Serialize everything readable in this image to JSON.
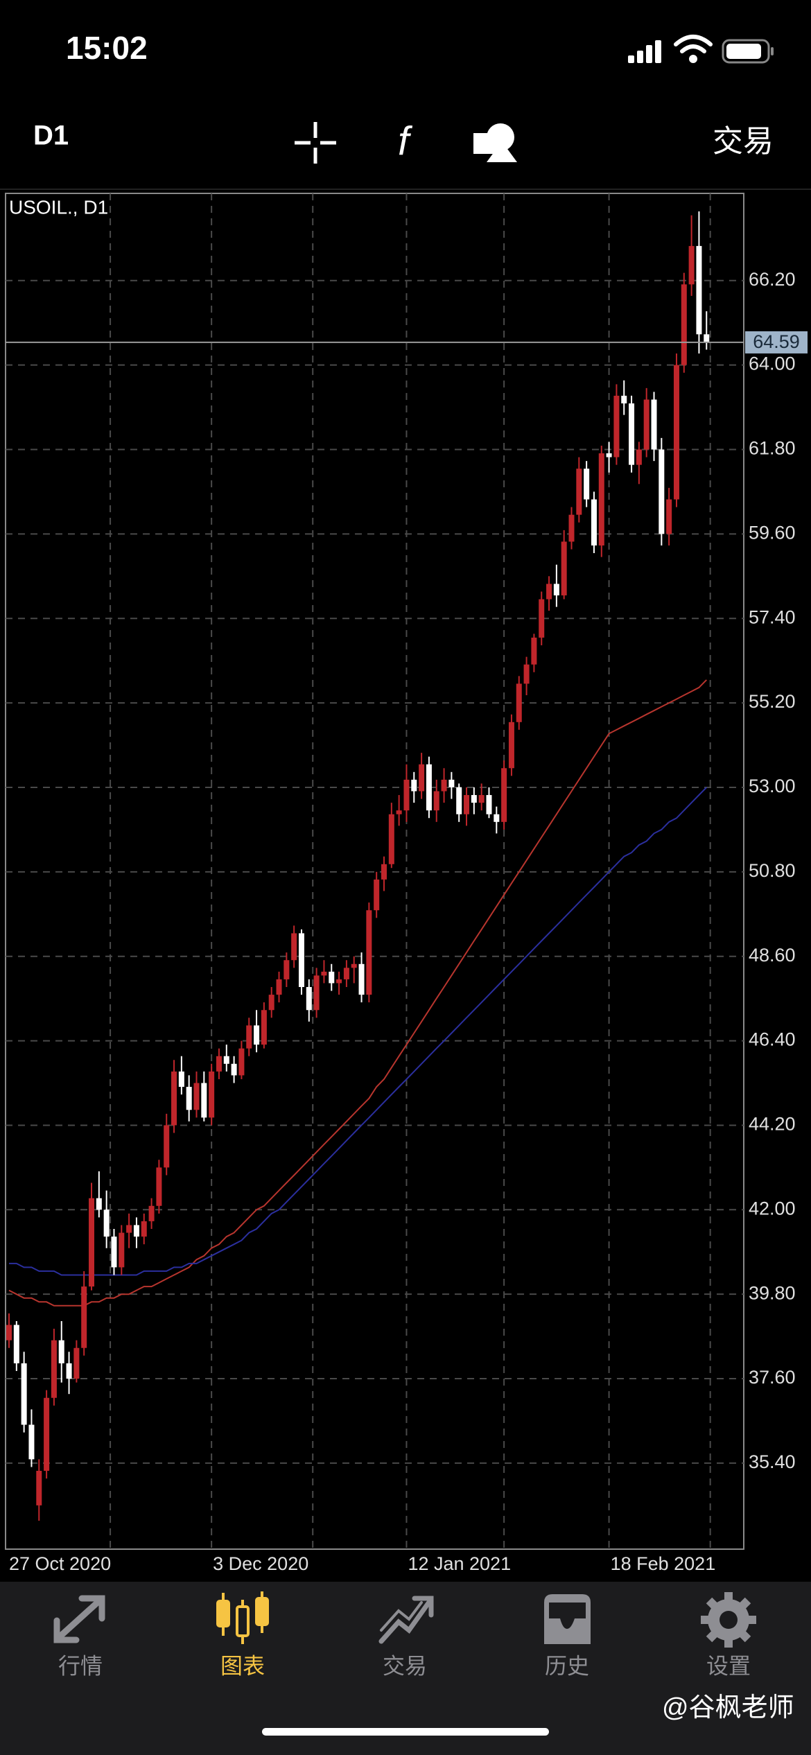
{
  "status_bar": {
    "time": "15:02"
  },
  "toolbar": {
    "timeframe": "D1",
    "trade": "交易"
  },
  "chart_data": {
    "type": "candlestick",
    "title": "USOIL., D1",
    "categories": [
      "27 Oct 2020",
      null,
      null,
      null,
      null,
      null,
      null,
      null,
      null,
      null,
      null,
      null,
      null,
      null,
      null,
      null,
      null,
      null,
      null,
      null,
      null,
      null,
      null,
      null,
      null,
      null,
      null,
      "3 Dec 2020",
      null,
      null,
      null,
      null,
      null,
      null,
      null,
      null,
      null,
      null,
      null,
      null,
      null,
      null,
      null,
      null,
      null,
      null,
      null,
      null,
      null,
      null,
      null,
      null,
      null,
      "12 Jan 2021",
      null,
      null,
      null,
      null,
      null,
      null,
      null,
      null,
      null,
      null,
      null,
      null,
      null,
      null,
      null,
      null,
      null,
      null,
      null,
      null,
      null,
      null,
      null,
      null,
      null,
      null,
      "18 Feb 2021",
      null,
      null,
      null,
      null,
      null,
      null,
      null,
      null,
      null,
      null,
      null,
      null,
      null
    ],
    "ohlc": [
      [
        38.6,
        39.3,
        38.4,
        39.0
      ],
      [
        39.0,
        39.1,
        37.8,
        38.0
      ],
      [
        38.0,
        38.3,
        36.2,
        36.4
      ],
      [
        36.4,
        36.8,
        35.3,
        35.5
      ],
      [
        34.3,
        35.5,
        33.9,
        35.2
      ],
      [
        35.2,
        37.3,
        35.0,
        37.1
      ],
      [
        37.1,
        38.9,
        36.9,
        38.6
      ],
      [
        38.6,
        39.1,
        37.5,
        38.0
      ],
      [
        38.0,
        38.3,
        37.2,
        37.6
      ],
      [
        37.6,
        38.6,
        37.5,
        38.4
      ],
      [
        38.4,
        40.4,
        38.2,
        40.0
      ],
      [
        40.0,
        42.7,
        39.9,
        42.3
      ],
      [
        42.3,
        43.0,
        41.8,
        42.0
      ],
      [
        42.0,
        42.5,
        41.0,
        41.3
      ],
      [
        41.3,
        41.5,
        40.3,
        40.5
      ],
      [
        40.5,
        41.6,
        40.3,
        41.4
      ],
      [
        41.4,
        41.9,
        41.0,
        41.6
      ],
      [
        41.6,
        41.8,
        41.0,
        41.3
      ],
      [
        41.3,
        41.9,
        41.1,
        41.7
      ],
      [
        41.7,
        42.3,
        41.5,
        42.1
      ],
      [
        42.1,
        43.3,
        41.9,
        43.1
      ],
      [
        43.1,
        44.5,
        42.9,
        44.2
      ],
      [
        44.2,
        45.9,
        44.0,
        45.6
      ],
      [
        45.6,
        46.0,
        45.0,
        45.2
      ],
      [
        45.2,
        45.5,
        44.3,
        44.6
      ],
      [
        44.6,
        45.6,
        44.4,
        45.3
      ],
      [
        45.3,
        45.6,
        44.3,
        44.4
      ],
      [
        44.4,
        45.8,
        44.2,
        45.6
      ],
      [
        45.6,
        46.2,
        45.4,
        46.0
      ],
      [
        46.0,
        46.3,
        45.6,
        45.8
      ],
      [
        45.8,
        46.0,
        45.3,
        45.5
      ],
      [
        45.5,
        46.4,
        45.4,
        46.2
      ],
      [
        46.2,
        47.0,
        46.0,
        46.8
      ],
      [
        46.8,
        47.2,
        46.1,
        46.3
      ],
      [
        46.3,
        47.4,
        46.2,
        47.2
      ],
      [
        47.2,
        47.8,
        47.0,
        47.6
      ],
      [
        47.6,
        48.2,
        47.4,
        48.0
      ],
      [
        48.0,
        48.7,
        47.8,
        48.5
      ],
      [
        48.5,
        49.4,
        48.3,
        49.2
      ],
      [
        49.2,
        49.3,
        47.6,
        47.8
      ],
      [
        47.8,
        48.0,
        46.9,
        47.2
      ],
      [
        47.2,
        48.3,
        47.0,
        48.1
      ],
      [
        48.1,
        48.5,
        47.9,
        48.2
      ],
      [
        48.2,
        48.4,
        47.7,
        47.9
      ],
      [
        47.9,
        48.2,
        47.6,
        48.0
      ],
      [
        48.0,
        48.5,
        47.8,
        48.3
      ],
      [
        48.3,
        48.6,
        47.9,
        48.4
      ],
      [
        48.4,
        48.7,
        47.4,
        47.6
      ],
      [
        47.6,
        50.0,
        47.4,
        49.8
      ],
      [
        49.8,
        50.8,
        49.6,
        50.6
      ],
      [
        50.6,
        51.2,
        50.3,
        51.0
      ],
      [
        51.0,
        52.6,
        50.9,
        52.3
      ],
      [
        52.3,
        52.8,
        52.0,
        52.4
      ],
      [
        52.4,
        53.6,
        52.1,
        53.2
      ],
      [
        53.2,
        53.4,
        52.6,
        52.9
      ],
      [
        52.9,
        53.9,
        52.7,
        53.6
      ],
      [
        53.6,
        53.8,
        52.2,
        52.4
      ],
      [
        52.4,
        53.2,
        52.1,
        52.9
      ],
      [
        52.9,
        53.5,
        52.6,
        53.2
      ],
      [
        53.2,
        53.4,
        52.7,
        53.0
      ],
      [
        53.0,
        53.1,
        52.1,
        52.3
      ],
      [
        52.3,
        53.0,
        52.0,
        52.8
      ],
      [
        52.8,
        53.0,
        52.3,
        52.6
      ],
      [
        52.6,
        53.1,
        52.4,
        52.8
      ],
      [
        52.8,
        53.0,
        52.2,
        52.3
      ],
      [
        52.3,
        52.5,
        51.8,
        52.1
      ],
      [
        52.1,
        53.7,
        51.9,
        53.5
      ],
      [
        53.5,
        54.9,
        53.3,
        54.7
      ],
      [
        54.7,
        55.9,
        54.5,
        55.7
      ],
      [
        55.7,
        56.4,
        55.4,
        56.2
      ],
      [
        56.2,
        57.0,
        56.0,
        56.9
      ],
      [
        56.9,
        58.1,
        56.7,
        57.9
      ],
      [
        57.9,
        58.5,
        57.6,
        58.3
      ],
      [
        58.3,
        58.8,
        57.7,
        58.0
      ],
      [
        58.0,
        59.7,
        57.9,
        59.4
      ],
      [
        59.4,
        60.3,
        59.2,
        60.1
      ],
      [
        60.1,
        61.6,
        59.9,
        61.3
      ],
      [
        61.3,
        61.5,
        60.3,
        60.5
      ],
      [
        60.5,
        60.7,
        59.1,
        59.3
      ],
      [
        59.3,
        61.9,
        59.0,
        61.7
      ],
      [
        61.7,
        62.0,
        61.2,
        61.6
      ],
      [
        61.6,
        63.5,
        61.4,
        63.2
      ],
      [
        63.2,
        63.6,
        62.7,
        63.0
      ],
      [
        63.0,
        63.2,
        61.2,
        61.4
      ],
      [
        61.4,
        62.0,
        60.9,
        61.8
      ],
      [
        61.8,
        63.4,
        61.6,
        63.1
      ],
      [
        63.1,
        63.3,
        61.5,
        61.8
      ],
      [
        61.8,
        62.1,
        59.3,
        59.6
      ],
      [
        59.6,
        60.8,
        59.3,
        60.5
      ],
      [
        60.5,
        64.3,
        60.3,
        64.0
      ],
      [
        64.0,
        66.4,
        63.8,
        66.1
      ],
      [
        66.1,
        67.9,
        65.8,
        67.1
      ],
      [
        67.1,
        68.0,
        64.3,
        64.8
      ],
      [
        64.8,
        65.4,
        64.4,
        64.59
      ]
    ],
    "up_color": "#c0262b",
    "down_color": "#ffffff",
    "lines": [
      {
        "color": "#b8352e",
        "values": [
          39.9,
          39.8,
          39.7,
          39.7,
          39.6,
          39.6,
          39.5,
          39.5,
          39.5,
          39.5,
          39.5,
          39.6,
          39.6,
          39.7,
          39.7,
          39.8,
          39.8,
          39.9,
          40.0,
          40.0,
          40.1,
          40.2,
          40.3,
          40.4,
          40.5,
          40.7,
          40.8,
          41.0,
          41.1,
          41.3,
          41.4,
          41.6,
          41.8,
          42.0,
          42.1,
          42.3,
          42.5,
          42.7,
          42.9,
          43.1,
          43.3,
          43.5,
          43.7,
          43.9,
          44.1,
          44.3,
          44.5,
          44.7,
          44.9,
          45.2,
          45.4,
          45.7,
          46.0,
          46.3,
          46.6,
          46.9,
          47.2,
          47.5,
          47.8,
          48.1,
          48.4,
          48.7,
          49.0,
          49.3,
          49.6,
          49.9,
          50.2,
          50.5,
          50.8,
          51.1,
          51.4,
          51.7,
          52.0,
          52.3,
          52.6,
          52.9,
          53.2,
          53.5,
          53.8,
          54.1,
          54.4,
          54.5,
          54.6,
          54.7,
          54.8,
          54.9,
          55.0,
          55.1,
          55.2,
          55.3,
          55.4,
          55.5,
          55.6,
          55.8
        ]
      },
      {
        "color": "#2b2f9e",
        "values": [
          40.6,
          40.6,
          40.5,
          40.5,
          40.4,
          40.4,
          40.4,
          40.3,
          40.3,
          40.3,
          40.3,
          40.3,
          40.3,
          40.3,
          40.3,
          40.3,
          40.3,
          40.3,
          40.4,
          40.4,
          40.4,
          40.4,
          40.5,
          40.5,
          40.6,
          40.6,
          40.7,
          40.8,
          40.9,
          41.0,
          41.1,
          41.2,
          41.4,
          41.5,
          41.7,
          41.9,
          42.0,
          42.2,
          42.4,
          42.6,
          42.8,
          43.0,
          43.2,
          43.4,
          43.6,
          43.8,
          44.0,
          44.2,
          44.4,
          44.6,
          44.8,
          45.0,
          45.2,
          45.4,
          45.6,
          45.8,
          46.0,
          46.2,
          46.4,
          46.6,
          46.8,
          47.0,
          47.2,
          47.4,
          47.6,
          47.8,
          48.0,
          48.2,
          48.4,
          48.6,
          48.8,
          49.0,
          49.2,
          49.4,
          49.6,
          49.8,
          50.0,
          50.2,
          50.4,
          50.6,
          50.8,
          51.0,
          51.2,
          51.3,
          51.5,
          51.6,
          51.8,
          51.9,
          52.1,
          52.2,
          52.4,
          52.6,
          52.8,
          53.0
        ]
      }
    ],
    "last_price": 64.59,
    "ylim": [
      33.16,
      68.47
    ],
    "yticks": [
      {
        "value": 66.2,
        "label": "66.20"
      },
      {
        "value": 64,
        "label": "64.00"
      },
      {
        "value": 61.8,
        "label": "61.80"
      },
      {
        "value": 59.6,
        "label": "59.60"
      },
      {
        "value": 57.4,
        "label": "57.40"
      },
      {
        "value": 55.2,
        "label": "55.20"
      },
      {
        "value": 53,
        "label": "53.00"
      },
      {
        "value": 50.8,
        "label": "50.80"
      },
      {
        "value": 48.6,
        "label": "48.60"
      },
      {
        "value": 46.4,
        "label": "46.40"
      },
      {
        "value": 44.2,
        "label": "44.20"
      },
      {
        "value": 42,
        "label": "42.00"
      },
      {
        "value": 39.8,
        "label": "39.80"
      },
      {
        "value": 37.6,
        "label": "37.60"
      },
      {
        "value": 35.4,
        "label": "35.40"
      }
    ],
    "grid": true
  },
  "tabs": [
    {
      "label": "行情",
      "active": false
    },
    {
      "label": "图表",
      "active": true
    },
    {
      "label": "交易",
      "active": false
    },
    {
      "label": "历史",
      "active": false
    },
    {
      "label": "设置",
      "active": false
    }
  ],
  "watermark": "@谷枫老师"
}
